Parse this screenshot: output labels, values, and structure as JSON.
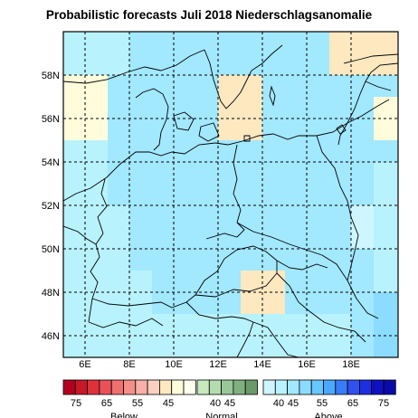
{
  "title": "Probabilistic forecasts Juli 2018 Niederschlagsanomalie",
  "map": {
    "lon_labels": [
      "6E",
      "8E",
      "10E",
      "12E",
      "14E",
      "16E",
      "18E"
    ],
    "lat_labels": [
      "58N",
      "56N",
      "54N",
      "52N",
      "50N",
      "48N",
      "46N"
    ]
  },
  "palette": {
    "below_75": "#b30020",
    "below_65": "#e0303a",
    "below_55": "#f07070",
    "below_45": "#f8b0a8",
    "below_40": "#fde8c0",
    "below_35": "#fffcdc",
    "normal_40": "#c8e8c0",
    "normal_45": "#98c898",
    "normal_50": "#6a9a6a",
    "above_35": "#cff6ff",
    "above_40": "#b8f2fd",
    "above_45": "#a2e8ff",
    "above_55": "#8cdcff",
    "above_65": "#3050f0",
    "above_75": "#1010c0",
    "land_lines": "#000000",
    "grid": "#000000"
  },
  "legend": {
    "below_ticks": [
      "75",
      "65",
      "55",
      "45"
    ],
    "normal_ticks": [
      "40",
      "45"
    ],
    "above_ticks": [
      "40",
      "45",
      "55",
      "65",
      "75"
    ],
    "below_label": "Below",
    "normal_label": "Normal",
    "above_label": "Above"
  }
}
